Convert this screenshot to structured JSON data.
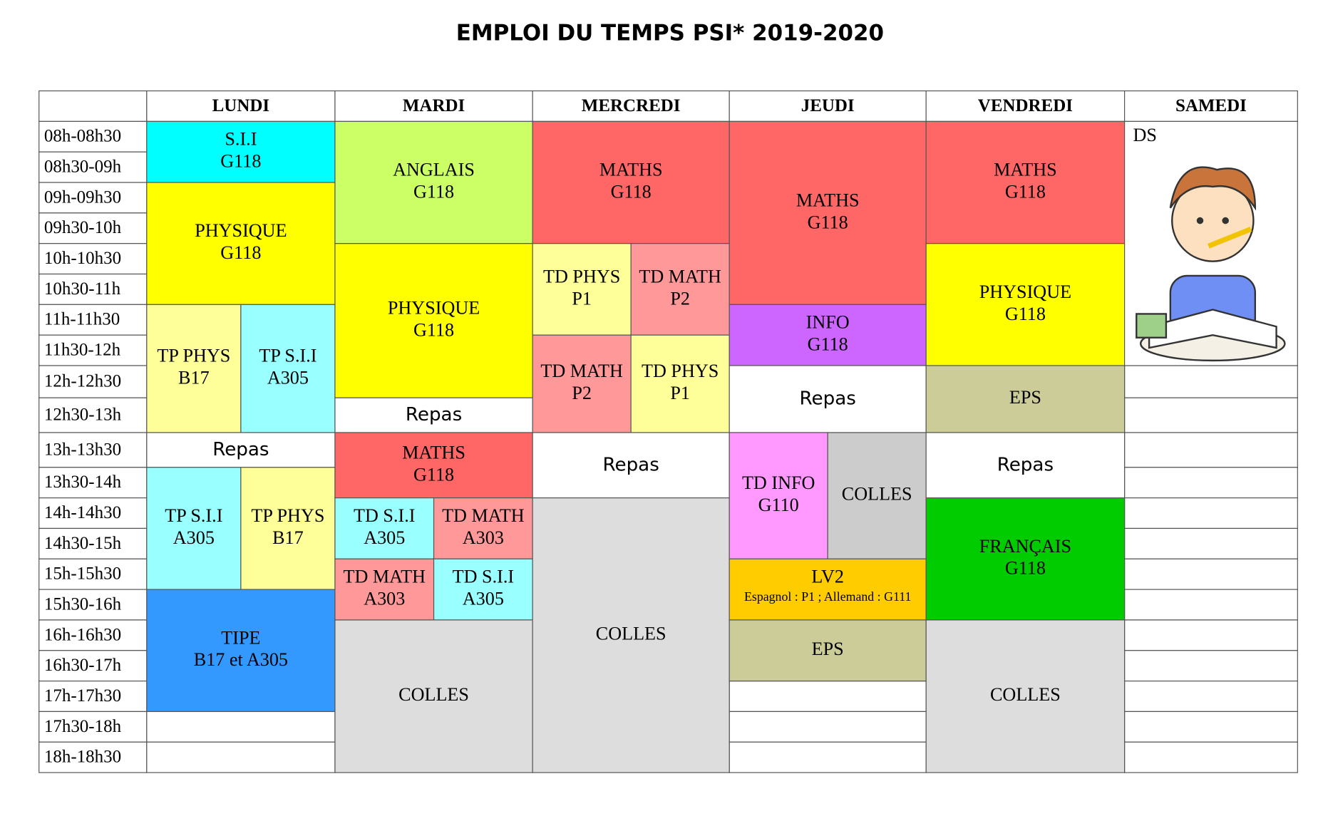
{
  "title": "EMPLOI DU TEMPS PSI* 2019-2020",
  "days": [
    "LUNDI",
    "MARDI",
    "MERCREDI",
    "JEUDI",
    "VENDREDI",
    "SAMEDI"
  ],
  "times": [
    "08h-08h30",
    "08h30-09h",
    "09h-09h30",
    "09h30-10h",
    "10h-10h30",
    "10h30-11h",
    "11h-11h30",
    "11h30-12h",
    "12h-12h30",
    "12h30-13h",
    "13h-13h30",
    "13h30-14h",
    "14h-14h30",
    "14h30-15h",
    "15h-15h30",
    "15h30-16h",
    "16h-16h30",
    "16h30-17h",
    "17h-17h30",
    "17h30-18h",
    "18h-18h30"
  ],
  "schedule": [
    [
      {
        "lines": [
          "S.I.I",
          "G118"
        ],
        "color": "#00ffff"
      },
      {
        "lines": [
          "PHYSIQUE",
          "G118"
        ],
        "color": "#ffff00"
      },
      {
        "lines": [
          "TP PHYS",
          "B17"
        ],
        "color": "#ffff99"
      },
      {
        "lines": [
          "TP S.I.I",
          "A305"
        ],
        "color": "#99ffff"
      },
      {
        "lines": [
          "Repas"
        ],
        "color": "#ffffff"
      },
      {
        "lines": [
          "TP S.I.I",
          "A305"
        ],
        "color": "#99ffff"
      },
      {
        "lines": [
          "TP PHYS",
          "B17"
        ],
        "color": "#ffff99"
      },
      {
        "lines": [
          "TIPE",
          "B17 et A305"
        ],
        "color": "#3399ff"
      }
    ],
    [
      {
        "lines": [
          "ANGLAIS",
          "G118"
        ],
        "color": "#ccff66"
      },
      {
        "lines": [
          "PHYSIQUE",
          "G118"
        ],
        "color": "#ffff00"
      },
      {
        "lines": [
          "Repas"
        ],
        "color": "#ffffff"
      },
      {
        "lines": [
          "MATHS",
          "G118"
        ],
        "color": "#ff6666"
      },
      {
        "lines": [
          "TD S.I.I",
          "A305"
        ],
        "color": "#99ffff"
      },
      {
        "lines": [
          "TD MATH",
          "A303"
        ],
        "color": "#ff9999"
      },
      {
        "lines": [
          "TD MATH",
          "A303"
        ],
        "color": "#ff9999"
      },
      {
        "lines": [
          "TD S.I.I",
          "A305"
        ],
        "color": "#99ffff"
      },
      {
        "lines": [
          "COLLES"
        ],
        "color": "#dddddd"
      }
    ],
    [
      {
        "lines": [
          "MATHS",
          "G118"
        ],
        "color": "#ff6666"
      },
      {
        "lines": [
          "TD PHYS",
          "P1"
        ],
        "color": "#ffff99"
      },
      {
        "lines": [
          "TD MATH",
          "P2"
        ],
        "color": "#ff9999"
      },
      {
        "lines": [
          "TD MATH",
          "P2"
        ],
        "color": "#ff9999"
      },
      {
        "lines": [
          "TD PHYS",
          "P1"
        ],
        "color": "#ffff99"
      },
      {
        "lines": [
          "Repas"
        ],
        "color": "#ffffff"
      },
      {
        "lines": [
          "COLLES"
        ],
        "color": "#dddddd"
      }
    ],
    [
      {
        "lines": [
          "MATHS",
          "G118"
        ],
        "color": "#ff6666"
      },
      {
        "lines": [
          "INFO",
          "G118"
        ],
        "color": "#cc66ff"
      },
      {
        "lines": [
          "Repas"
        ],
        "color": "#ffffff"
      },
      {
        "lines": [
          "TD INFO",
          "G110"
        ],
        "color": "#ff99ff"
      },
      {
        "lines": [
          "COLLES"
        ],
        "color": "#cccccc"
      },
      {
        "lines": [
          "LV2",
          "Espagnol : P1 ; Allemand : G111"
        ],
        "color": "#ffcc00"
      },
      {
        "lines": [
          "EPS"
        ],
        "color": "#cccc99"
      }
    ],
    [
      {
        "lines": [
          "MATHS",
          "G118"
        ],
        "color": "#ff6666"
      },
      {
        "lines": [
          "PHYSIQUE",
          "G118"
        ],
        "color": "#ffff00"
      },
      {
        "lines": [
          "EPS"
        ],
        "color": "#cccc99"
      },
      {
        "lines": [
          "Repas"
        ],
        "color": "#ffffff"
      },
      {
        "lines": [
          "FRANÇAIS",
          "G118"
        ],
        "color": "#00cc00"
      },
      {
        "lines": [
          "COLLES"
        ],
        "color": "#dddddd"
      }
    ],
    [
      {
        "lines": [
          "DS"
        ],
        "color": "#ffffff"
      }
    ]
  ]
}
